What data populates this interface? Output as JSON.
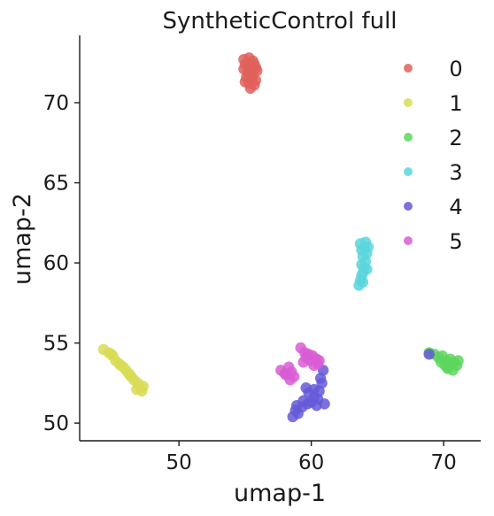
{
  "chart_data": {
    "type": "scatter",
    "title": "SyntheticControl full",
    "xlabel": "umap-1",
    "ylabel": "umap-2",
    "xlim": [
      42.5,
      72.8
    ],
    "ylim": [
      48.9,
      74.2
    ],
    "xticks": [
      50,
      60,
      70
    ],
    "yticks": [
      50,
      55,
      60,
      65,
      70
    ],
    "grid": false,
    "legend_position": "top-right",
    "series": [
      {
        "name": "0",
        "color": "#e0605a",
        "points": [
          [
            54.9,
            72.7
          ],
          [
            55.3,
            72.8
          ],
          [
            55.6,
            72.6
          ],
          [
            55.0,
            72.4
          ],
          [
            55.4,
            72.3
          ],
          [
            55.8,
            72.2
          ],
          [
            54.9,
            72.1
          ],
          [
            55.2,
            71.9
          ],
          [
            55.6,
            71.8
          ],
          [
            55.9,
            72.0
          ],
          [
            55.1,
            71.6
          ],
          [
            55.5,
            71.5
          ],
          [
            55.8,
            71.4
          ],
          [
            55.3,
            71.2
          ],
          [
            55.7,
            71.1
          ],
          [
            55.0,
            71.3
          ],
          [
            55.4,
            70.9
          ],
          [
            55.2,
            72.5
          ],
          [
            55.7,
            72.4
          ],
          [
            55.4,
            71.8
          ]
        ]
      },
      {
        "name": "1",
        "color": "#d8dc55",
        "points": [
          [
            44.3,
            54.6
          ],
          [
            44.7,
            54.4
          ],
          [
            45.0,
            54.2
          ],
          [
            45.2,
            53.9
          ],
          [
            45.5,
            53.7
          ],
          [
            45.8,
            53.5
          ],
          [
            46.0,
            53.3
          ],
          [
            46.2,
            53.1
          ],
          [
            46.4,
            52.9
          ],
          [
            46.6,
            52.7
          ],
          [
            46.9,
            52.5
          ],
          [
            47.1,
            52.2
          ],
          [
            47.2,
            52.0
          ],
          [
            46.8,
            52.1
          ],
          [
            47.3,
            52.3
          ],
          [
            45.6,
            53.6
          ],
          [
            46.3,
            53.0
          ],
          [
            44.9,
            54.3
          ]
        ]
      },
      {
        "name": "2",
        "color": "#5dd65e",
        "points": [
          [
            68.9,
            54.4
          ],
          [
            69.3,
            54.3
          ],
          [
            69.6,
            54.1
          ],
          [
            69.9,
            54.2
          ],
          [
            70.2,
            53.9
          ],
          [
            70.5,
            54.0
          ],
          [
            70.8,
            53.8
          ],
          [
            71.0,
            53.6
          ],
          [
            70.4,
            53.5
          ],
          [
            70.7,
            53.3
          ],
          [
            71.1,
            53.9
          ],
          [
            69.8,
            53.8
          ],
          [
            70.1,
            53.6
          ],
          [
            70.6,
            53.7
          ],
          [
            70.3,
            53.4
          ]
        ]
      },
      {
        "name": "3",
        "color": "#5ad6dc",
        "points": [
          [
            63.7,
            61.2
          ],
          [
            64.1,
            61.3
          ],
          [
            64.3,
            61.0
          ],
          [
            63.8,
            60.8
          ],
          [
            64.2,
            60.6
          ],
          [
            63.9,
            60.4
          ],
          [
            64.1,
            60.1
          ],
          [
            63.8,
            59.9
          ],
          [
            64.0,
            59.7
          ],
          [
            63.9,
            59.4
          ],
          [
            63.8,
            59.2
          ],
          [
            63.7,
            58.9
          ],
          [
            63.6,
            58.6
          ],
          [
            63.9,
            58.8
          ],
          [
            64.2,
            59.6
          ],
          [
            64.0,
            60.9
          ]
        ]
      },
      {
        "name": "4",
        "color": "#6559d8",
        "points": [
          [
            58.6,
            50.4
          ],
          [
            58.8,
            50.8
          ],
          [
            59.0,
            50.6
          ],
          [
            59.3,
            51.0
          ],
          [
            59.4,
            51.4
          ],
          [
            59.7,
            51.2
          ],
          [
            60.0,
            51.3
          ],
          [
            60.2,
            51.6
          ],
          [
            60.5,
            51.5
          ],
          [
            60.6,
            52.0
          ],
          [
            60.8,
            52.5
          ],
          [
            60.9,
            53.3
          ],
          [
            61.0,
            51.2
          ],
          [
            60.4,
            51.1
          ],
          [
            59.8,
            51.9
          ],
          [
            59.6,
            52.2
          ],
          [
            60.2,
            52.1
          ],
          [
            58.9,
            51.1
          ],
          [
            68.9,
            54.3
          ],
          [
            60.7,
            52.8
          ]
        ]
      },
      {
        "name": "5",
        "color": "#d95cd5",
        "points": [
          [
            57.7,
            53.3
          ],
          [
            58.0,
            53.1
          ],
          [
            58.3,
            53.5
          ],
          [
            58.5,
            53.2
          ],
          [
            58.7,
            52.9
          ],
          [
            58.4,
            52.7
          ],
          [
            58.1,
            53.0
          ],
          [
            59.2,
            54.7
          ],
          [
            59.5,
            54.4
          ],
          [
            59.8,
            54.3
          ],
          [
            60.1,
            54.2
          ],
          [
            60.4,
            54.0
          ],
          [
            60.5,
            53.7
          ],
          [
            60.2,
            53.6
          ],
          [
            59.9,
            53.9
          ],
          [
            59.4,
            53.8
          ],
          [
            59.6,
            54.1
          ],
          [
            60.6,
            53.9
          ]
        ]
      }
    ]
  }
}
